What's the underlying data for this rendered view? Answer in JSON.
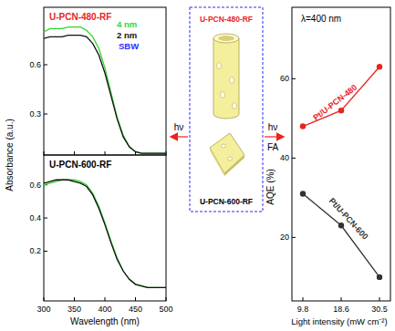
{
  "chart_data": [
    {
      "type": "line",
      "title": "U-PCN-480-RF",
      "y_label": "Absorbance (a.u.)",
      "x": [
        300,
        310,
        320,
        330,
        340,
        350,
        360,
        370,
        380,
        390,
        400,
        410,
        420,
        430,
        440,
        450,
        460,
        470,
        480,
        490,
        500
      ],
      "xlim": [
        300,
        500
      ],
      "xticks": [
        300,
        350,
        400,
        450,
        500
      ],
      "ylim": [
        0.05,
        0.95
      ],
      "yticks": [
        0.3,
        0.6
      ],
      "tick_labels": "y",
      "annotations": [
        "SBW"
      ],
      "series": [
        {
          "name": "4 nm",
          "color": "#2fd62f",
          "values": [
            0.8,
            0.82,
            0.82,
            0.82,
            0.83,
            0.83,
            0.83,
            0.81,
            0.77,
            0.7,
            0.58,
            0.43,
            0.28,
            0.17,
            0.1,
            0.07,
            0.06,
            0.06,
            0.06,
            0.06,
            0.06
          ]
        },
        {
          "name": "2 nm",
          "color": "#111111",
          "values": [
            0.76,
            0.77,
            0.77,
            0.77,
            0.78,
            0.78,
            0.78,
            0.77,
            0.73,
            0.66,
            0.55,
            0.41,
            0.27,
            0.16,
            0.1,
            0.07,
            0.06,
            0.06,
            0.06,
            0.06,
            0.06
          ]
        }
      ]
    },
    {
      "type": "line",
      "title": "U-PCN-600-RF",
      "x_label": "Wavelength (nm)",
      "x": [
        300,
        310,
        320,
        330,
        340,
        350,
        360,
        370,
        380,
        390,
        400,
        410,
        420,
        430,
        440,
        450,
        460,
        470,
        480,
        490,
        500
      ],
      "xlim": [
        300,
        500
      ],
      "xticks": [
        300,
        350,
        400,
        450,
        500
      ],
      "ylim": [
        -0.1,
        0.78
      ],
      "yticks": [
        0.2,
        0.4,
        0.6
      ],
      "series": [
        {
          "color": "#2fd62f",
          "values": [
            0.6,
            0.61,
            0.62,
            0.63,
            0.63,
            0.63,
            0.62,
            0.6,
            0.55,
            0.47,
            0.37,
            0.26,
            0.16,
            0.08,
            0.03,
            0.0,
            -0.01,
            -0.02,
            -0.02,
            -0.02,
            -0.02
          ]
        },
        {
          "color": "#111111",
          "values": [
            0.61,
            0.62,
            0.63,
            0.63,
            0.63,
            0.62,
            0.61,
            0.59,
            0.54,
            0.46,
            0.36,
            0.25,
            0.15,
            0.08,
            0.03,
            0.0,
            -0.01,
            -0.02,
            -0.02,
            -0.02,
            -0.02
          ]
        }
      ]
    },
    {
      "type": "line",
      "x_label": "Light intensity (mW cm⁻²)",
      "y_label": "AQE (%)",
      "annotations": [
        "λ=400 nm"
      ],
      "categories": [
        "9.8",
        "18.6",
        "30.5"
      ],
      "ylim": [
        4,
        78
      ],
      "yticks": [
        20,
        40,
        60
      ],
      "marker": "circle",
      "series": [
        {
          "name": "Pt/U-PCN-480",
          "color": "#e8251f",
          "values": [
            48,
            52,
            63
          ]
        },
        {
          "name": "Pt/U-PCN-600",
          "color": "#333333",
          "values": [
            31,
            23,
            10
          ]
        }
      ]
    }
  ],
  "diagram": {
    "box_labels": [
      "U-PCN-480-RF",
      "U-PCN-600-RF"
    ],
    "arrows": [
      {
        "label": "hν"
      },
      {
        "label": "hν",
        "sublabel": "FA"
      }
    ]
  }
}
